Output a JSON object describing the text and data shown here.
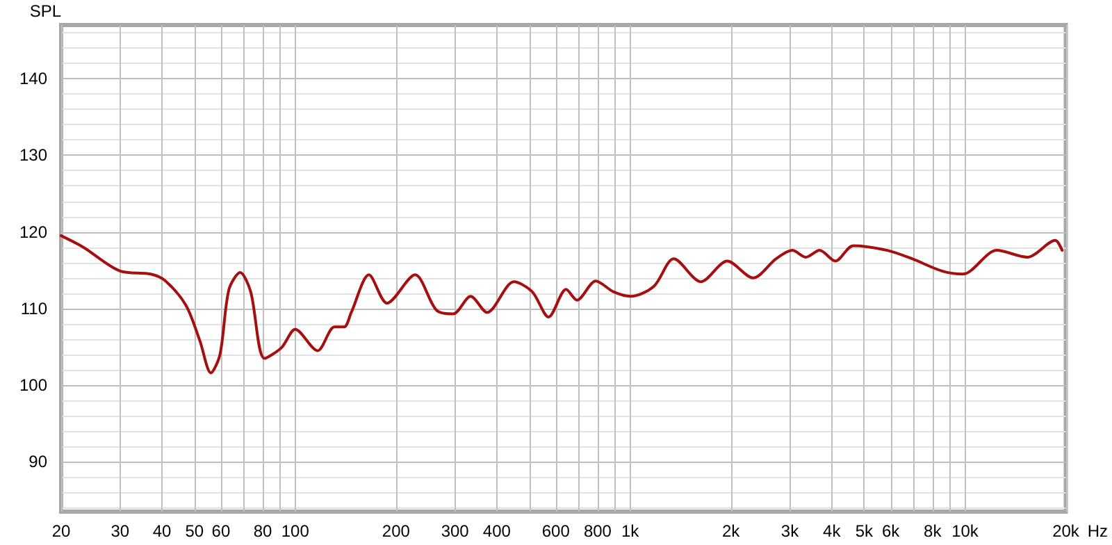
{
  "chart_data": {
    "type": "line",
    "ylabel": "SPL",
    "xlabel": "Hz",
    "log": "x",
    "grid": true,
    "marker": "none",
    "line_style": "solid",
    "xlim": [
      20,
      20000
    ],
    "ylim": [
      83.5,
      147
    ],
    "xticks": [
      20,
      30,
      40,
      50,
      60,
      {
        "value": 70,
        "label": null
      },
      80,
      {
        "value": 90,
        "label": null
      },
      100,
      200,
      300,
      400,
      {
        "value": 500,
        "label": null
      },
      600,
      {
        "value": 700,
        "label": null
      },
      800,
      {
        "value": 900,
        "label": null
      },
      {
        "value": 1000,
        "label": "1k"
      },
      {
        "value": 2000,
        "label": "2k"
      },
      {
        "value": 3000,
        "label": "3k"
      },
      {
        "value": 4000,
        "label": "4k"
      },
      {
        "value": 5000,
        "label": "5k"
      },
      {
        "value": 6000,
        "label": "6k"
      },
      {
        "value": 7000,
        "label": null
      },
      {
        "value": 8000,
        "label": "8k"
      },
      {
        "value": 9000,
        "label": null
      },
      {
        "value": 10000,
        "label": "10k"
      },
      {
        "value": 20000,
        "label": "20k"
      }
    ],
    "yticks": [
      90,
      100,
      110,
      120,
      130,
      140
    ],
    "x": [
      20,
      23.3,
      30,
      37,
      41,
      47.2,
      51.9,
      56,
      59.6,
      63.4,
      68.5,
      73.6,
      81,
      91,
      100,
      116.6,
      131,
      140,
      147,
      166,
      188,
      228,
      264,
      296,
      334,
      374,
      450,
      510,
      571,
      644,
      694,
      790,
      891,
      1005,
      1177,
      1350,
      1627,
      1950,
      2330,
      2730,
      3050,
      3350,
      3680,
      4100,
      4640,
      5860,
      6950,
      8540,
      9850,
      12450,
      15350,
      18600,
      19500
    ],
    "series": [
      {
        "color": "#a50f0f",
        "values": [
          119.5,
          118,
          114.9,
          114.5,
          113.6,
          110.4,
          105.8,
          101.6,
          104,
          112.5,
          114.7,
          112.2,
          103.5,
          104.9,
          107.3,
          104.5,
          107.6,
          107.6,
          109.5,
          114.4,
          110.7,
          114.4,
          109.8,
          109.3,
          111.6,
          109.5,
          113.5,
          112.2,
          108.9,
          112.5,
          111.1,
          113.6,
          112.2,
          111.6,
          112.9,
          116.5,
          113.5,
          116.2,
          114,
          116.5,
          117.6,
          116.7,
          117.6,
          116.2,
          118.2,
          117.6,
          116.5,
          114.9,
          114.5,
          117.6,
          116.7,
          118.9,
          117.6
        ]
      }
    ]
  }
}
